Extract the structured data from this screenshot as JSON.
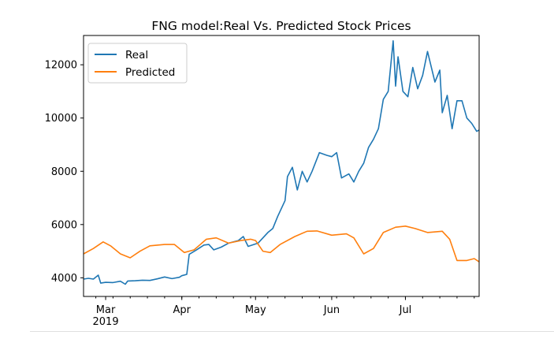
{
  "chart_data": {
    "type": "line",
    "title": "FNG model:Real Vs. Predicted Stock Prices",
    "xlabel": "",
    "ylabel": "",
    "x_range": [
      "2019-02-20",
      "2019-07-31"
    ],
    "ylim": [
      3300,
      13100
    ],
    "y_ticks": [
      4000,
      6000,
      8000,
      10000,
      12000
    ],
    "x_ticks": [
      {
        "date": "2019-03-01",
        "label": "Mar",
        "sublabel": "2019"
      },
      {
        "date": "2019-04-01",
        "label": "Apr",
        "sublabel": ""
      },
      {
        "date": "2019-05-01",
        "label": "May",
        "sublabel": ""
      },
      {
        "date": "2019-06-01",
        "label": "Jun",
        "sublabel": ""
      },
      {
        "date": "2019-07-01",
        "label": "Jul",
        "sublabel": ""
      }
    ],
    "grid": false,
    "legend_position": "top-left",
    "series": [
      {
        "name": "Real",
        "color": "#1f77b4",
        "points": [
          [
            "2019-02-20",
            3950
          ],
          [
            "2019-02-22",
            3980
          ],
          [
            "2019-02-24",
            3950
          ],
          [
            "2019-02-26",
            4100
          ],
          [
            "2019-02-27",
            3800
          ],
          [
            "2019-03-01",
            3830
          ],
          [
            "2019-03-04",
            3820
          ],
          [
            "2019-03-07",
            3870
          ],
          [
            "2019-03-09",
            3760
          ],
          [
            "2019-03-10",
            3880
          ],
          [
            "2019-03-13",
            3890
          ],
          [
            "2019-03-16",
            3910
          ],
          [
            "2019-03-19",
            3900
          ],
          [
            "2019-03-22",
            3960
          ],
          [
            "2019-03-25",
            4030
          ],
          [
            "2019-03-28",
            3970
          ],
          [
            "2019-03-31",
            4020
          ],
          [
            "2019-04-01",
            4080
          ],
          [
            "2019-04-03",
            4130
          ],
          [
            "2019-04-04",
            4880
          ],
          [
            "2019-04-07",
            5050
          ],
          [
            "2019-04-10",
            5230
          ],
          [
            "2019-04-12",
            5250
          ],
          [
            "2019-04-14",
            5050
          ],
          [
            "2019-04-17",
            5150
          ],
          [
            "2019-04-20",
            5300
          ],
          [
            "2019-04-24",
            5400
          ],
          [
            "2019-04-26",
            5550
          ],
          [
            "2019-04-28",
            5180
          ],
          [
            "2019-05-02",
            5300
          ],
          [
            "2019-05-06",
            5700
          ],
          [
            "2019-05-08",
            5850
          ],
          [
            "2019-05-10",
            6300
          ],
          [
            "2019-05-13",
            6900
          ],
          [
            "2019-05-14",
            7800
          ],
          [
            "2019-05-16",
            8150
          ],
          [
            "2019-05-18",
            7300
          ],
          [
            "2019-05-20",
            8000
          ],
          [
            "2019-05-22",
            7600
          ],
          [
            "2019-05-24",
            8000
          ],
          [
            "2019-05-27",
            8700
          ],
          [
            "2019-05-30",
            8600
          ],
          [
            "2019-06-01",
            8550
          ],
          [
            "2019-06-03",
            8700
          ],
          [
            "2019-06-05",
            7750
          ],
          [
            "2019-06-08",
            7900
          ],
          [
            "2019-06-10",
            7600
          ],
          [
            "2019-06-12",
            8000
          ],
          [
            "2019-06-14",
            8300
          ],
          [
            "2019-06-16",
            8900
          ],
          [
            "2019-06-18",
            9200
          ],
          [
            "2019-06-20",
            9600
          ],
          [
            "2019-06-22",
            10700
          ],
          [
            "2019-06-24",
            11000
          ],
          [
            "2019-06-26",
            12900
          ],
          [
            "2019-06-27",
            11200
          ],
          [
            "2019-06-28",
            12300
          ],
          [
            "2019-06-30",
            11000
          ],
          [
            "2019-07-02",
            10800
          ],
          [
            "2019-07-04",
            11900
          ],
          [
            "2019-07-06",
            11100
          ],
          [
            "2019-07-08",
            11600
          ],
          [
            "2019-07-10",
            12500
          ],
          [
            "2019-07-13",
            11350
          ],
          [
            "2019-07-15",
            11800
          ],
          [
            "2019-07-16",
            10200
          ],
          [
            "2019-07-18",
            10850
          ],
          [
            "2019-07-20",
            9600
          ],
          [
            "2019-07-22",
            10650
          ],
          [
            "2019-07-24",
            10650
          ],
          [
            "2019-07-26",
            10000
          ],
          [
            "2019-07-28",
            9800
          ],
          [
            "2019-07-30",
            9500
          ],
          [
            "2019-07-31",
            9550
          ]
        ]
      },
      {
        "name": "Predicted",
        "color": "#ff7f0e",
        "points": [
          [
            "2019-02-20",
            4900
          ],
          [
            "2019-02-24",
            5100
          ],
          [
            "2019-02-28",
            5350
          ],
          [
            "2019-03-03",
            5200
          ],
          [
            "2019-03-07",
            4900
          ],
          [
            "2019-03-11",
            4750
          ],
          [
            "2019-03-15",
            5000
          ],
          [
            "2019-03-19",
            5200
          ],
          [
            "2019-03-25",
            5250
          ],
          [
            "2019-03-29",
            5250
          ],
          [
            "2019-04-02",
            4950
          ],
          [
            "2019-04-06",
            5050
          ],
          [
            "2019-04-11",
            5450
          ],
          [
            "2019-04-15",
            5500
          ],
          [
            "2019-04-20",
            5300
          ],
          [
            "2019-04-25",
            5400
          ],
          [
            "2019-04-29",
            5450
          ],
          [
            "2019-05-01",
            5400
          ],
          [
            "2019-05-04",
            5000
          ],
          [
            "2019-05-07",
            4950
          ],
          [
            "2019-05-11",
            5250
          ],
          [
            "2019-05-17",
            5550
          ],
          [
            "2019-05-22",
            5750
          ],
          [
            "2019-05-26",
            5760
          ],
          [
            "2019-06-01",
            5600
          ],
          [
            "2019-06-07",
            5650
          ],
          [
            "2019-06-10",
            5500
          ],
          [
            "2019-06-14",
            4900
          ],
          [
            "2019-06-18",
            5100
          ],
          [
            "2019-06-22",
            5700
          ],
          [
            "2019-06-27",
            5900
          ],
          [
            "2019-07-01",
            5940
          ],
          [
            "2019-07-05",
            5850
          ],
          [
            "2019-07-10",
            5700
          ],
          [
            "2019-07-16",
            5750
          ],
          [
            "2019-07-19",
            5450
          ],
          [
            "2019-07-22",
            4650
          ],
          [
            "2019-07-26",
            4650
          ],
          [
            "2019-07-29",
            4720
          ],
          [
            "2019-07-31",
            4600
          ]
        ]
      }
    ]
  }
}
